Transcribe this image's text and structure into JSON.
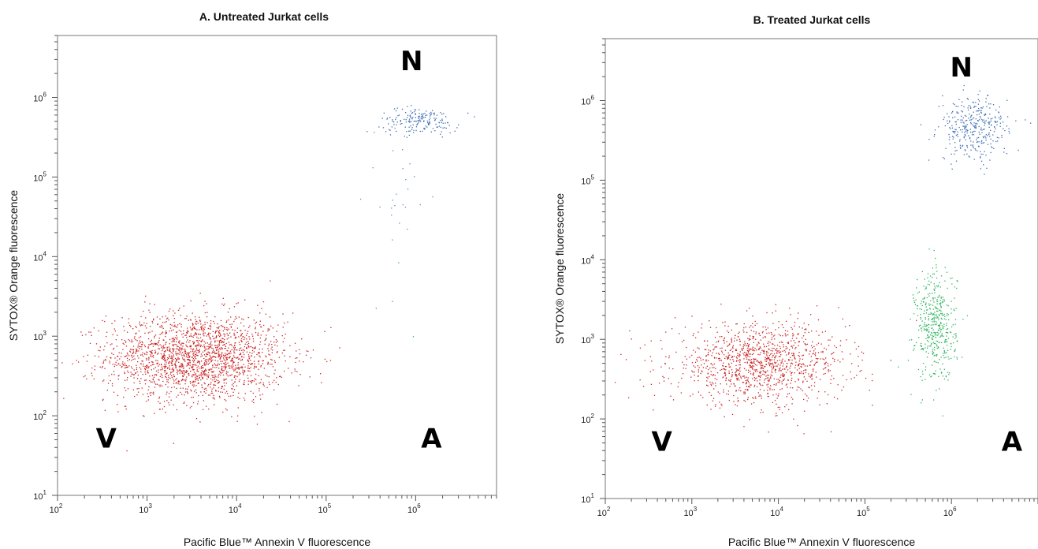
{
  "chart_data": [
    {
      "type": "scatter",
      "title": "A. Untreated Jurkat cells",
      "xlabel": "Pacific Blue™ Annexin V fluorescence",
      "ylabel": "SYTOX® Orange fluorescence",
      "xscale": "log",
      "yscale": "log",
      "xlim": [
        100,
        8000000
      ],
      "ylim": [
        10,
        6000000
      ],
      "x_ticks": [
        {
          "base": "10",
          "exp": "2"
        },
        {
          "base": "10",
          "exp": "3"
        },
        {
          "base": "10",
          "exp": "4"
        },
        {
          "base": "10",
          "exp": "5"
        },
        {
          "base": "10",
          "exp": "6"
        }
      ],
      "y_ticks": [
        {
          "base": "10",
          "exp": "1"
        },
        {
          "base": "10",
          "exp": "2"
        },
        {
          "base": "10",
          "exp": "3"
        },
        {
          "base": "10",
          "exp": "4"
        },
        {
          "base": "10",
          "exp": "5"
        },
        {
          "base": "10",
          "exp": "6"
        }
      ],
      "quadrant_labels": [
        {
          "label": "N",
          "x": 900000,
          "y": 2200000
        },
        {
          "label": "V",
          "x": 350,
          "y": 40
        },
        {
          "label": "A",
          "x": 1500000,
          "y": 40
        }
      ],
      "populations": [
        {
          "color": "#cc2222",
          "count": 2000,
          "x_center": 3500,
          "x_spread_decades": 0.5,
          "y_center": 550,
          "y_spread_decades": 0.28
        },
        {
          "color": "#3c6cb4",
          "count": 180,
          "x_center": 1100000,
          "x_spread_decades": 0.22,
          "y_center": 520000,
          "y_spread_decades": 0.08
        },
        {
          "color": "#5a8ac6",
          "count": 25,
          "x_center": 700000,
          "x_spread_decades": 0.2,
          "y_center": 80000,
          "y_spread_decades": 0.45
        },
        {
          "color": "#28b45a",
          "count": 4,
          "x_center": 600000,
          "x_spread_decades": 0.2,
          "y_center": 5000,
          "y_spread_decades": 0.35
        }
      ]
    },
    {
      "type": "scatter",
      "title": "B. Treated Jurkat cells",
      "xlabel": "Pacific Blue™ Annexin V fluorescence",
      "ylabel": "SYTOX® Orange fluorescence",
      "xscale": "log",
      "yscale": "log",
      "xlim": [
        100,
        10000000
      ],
      "ylim": [
        10,
        6000000
      ],
      "x_ticks": [
        {
          "base": "10",
          "exp": "2"
        },
        {
          "base": "10",
          "exp": "3"
        },
        {
          "base": "10",
          "exp": "4"
        },
        {
          "base": "10",
          "exp": "5"
        },
        {
          "base": "10",
          "exp": "6"
        }
      ],
      "y_ticks": [
        {
          "base": "10",
          "exp": "1"
        },
        {
          "base": "10",
          "exp": "2"
        },
        {
          "base": "10",
          "exp": "3"
        },
        {
          "base": "10",
          "exp": "4"
        },
        {
          "base": "10",
          "exp": "5"
        },
        {
          "base": "10",
          "exp": "6"
        }
      ],
      "quadrant_labels": [
        {
          "label": "N",
          "x": 1300000,
          "y": 2000000
        },
        {
          "label": "V",
          "x": 450,
          "y": 40
        },
        {
          "label": "A",
          "x": 5000000,
          "y": 40
        }
      ],
      "populations": [
        {
          "color": "#cc2222",
          "count": 1200,
          "x_center": 6000,
          "x_spread_decades": 0.5,
          "y_center": 500,
          "y_spread_decades": 0.25
        },
        {
          "color": "#28b45a",
          "count": 450,
          "x_center": 650000,
          "x_spread_decades": 0.12,
          "y_center": 1500,
          "y_spread_decades": 0.35
        },
        {
          "color": "#3c6cb4",
          "count": 350,
          "x_center": 1800000,
          "x_spread_decades": 0.2,
          "y_center": 450000,
          "y_spread_decades": 0.2
        }
      ]
    }
  ]
}
